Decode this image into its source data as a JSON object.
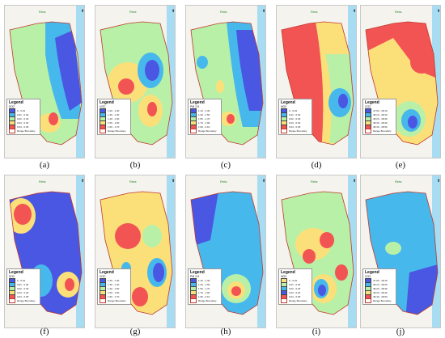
{
  "map_header_label": "Reta",
  "boundary_label": "Range Boundary",
  "legend_title": "Legend",
  "colors": {
    "blue_dark": "#4a57e3",
    "blue_light": "#47b8ec",
    "green_light": "#b8f0a8",
    "yellow": "#fbe07a",
    "red": "#f25454",
    "sea": "#a8dcf2",
    "boundary": "#c0392b"
  },
  "panels": [
    {
      "caption": "(a)",
      "variable": "SO2",
      "classes": [
        "0 - 0.01",
        "0.01 - 0.02",
        "0.02 - 0.03",
        "0.03 - 0.04",
        "0.04 - 0.05"
      ]
    },
    {
      "caption": "(b)",
      "variable": "VOC",
      "classes": [
        "1.20 - 1.30",
        "1.30 - 1.40",
        "1.40 - 1.50",
        "1.50 - 1.60",
        "1.60 - 1.70"
      ]
    },
    {
      "caption": "(c)",
      "variable": "PM 2.5",
      "classes": [
        "1.10 - 1.30",
        "1.30 - 1.50",
        "1.50 - 1.70",
        "1.70 - 1.90",
        "1.90 - 2.10"
      ]
    },
    {
      "caption": "(d)",
      "variable": "NO2",
      "classes": [
        "0 - 0.01",
        "0.01 - 0.02",
        "0.02 - 0.03",
        "0.03 - 0.04",
        "0.04 - 0.05"
      ]
    },
    {
      "caption": "(e)",
      "variable": "CO2",
      "classes": [
        "47.90 - 48.10",
        "48.10 - 48.20",
        "48.20 - 48.30",
        "48.30 - 48.40",
        "48.40 - 48.50"
      ]
    },
    {
      "caption": "(f)",
      "variable": "SO2",
      "classes": [
        "0 - 0.01",
        "0.01 - 0.02",
        "0.02 - 0.03",
        "0.03 - 0.04",
        "0.04 - 0.05"
      ]
    },
    {
      "caption": "(g)",
      "variable": "VOC",
      "classes": [
        "1.20 - 1.30",
        "1.30 - 1.40",
        "1.40 - 1.50",
        "1.50 - 1.60",
        "1.60 - 1.70"
      ]
    },
    {
      "caption": "(h)",
      "variable": "PM 2.5",
      "classes": [
        "1.10 - 1.30",
        "1.30 - 1.50",
        "1.50 - 1.70",
        "1.70 - 1.90",
        "1.90 - 2.10"
      ]
    },
    {
      "caption": "(i)",
      "variable": "NO2",
      "classes": [
        "0 - 0.01",
        "0.01 - 0.02",
        "0.02 - 0.03",
        "0.03 - 0.04",
        "0.04 - 0.05"
      ]
    },
    {
      "caption": "(j)",
      "variable": "CO2",
      "classes": [
        "47.90 - 48.10",
        "48.10 - 48.20",
        "48.20 - 48.30",
        "48.30 - 48.40",
        "48.40 - 48.50"
      ]
    }
  ]
}
